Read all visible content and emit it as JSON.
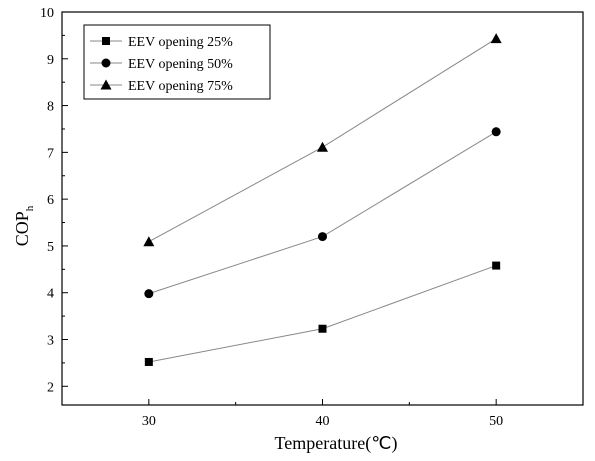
{
  "chart_data": {
    "type": "line",
    "xlabel": "Temperature(℃)",
    "ylabel": {
      "main": "COP",
      "sub": "h"
    },
    "x": [
      30,
      40,
      50
    ],
    "xlim": [
      25,
      55
    ],
    "xticks": [
      30,
      40,
      50
    ],
    "ylim": [
      1.6,
      10
    ],
    "yticks": [
      2,
      3,
      4,
      5,
      6,
      7,
      8,
      9,
      10
    ],
    "grid": false,
    "legend_position": "top-left",
    "series": [
      {
        "name": "EEV opening 25%",
        "marker": "square",
        "values": [
          2.52,
          3.23,
          4.58
        ]
      },
      {
        "name": "EEV opening 50%",
        "marker": "circle",
        "values": [
          3.98,
          5.2,
          7.44
        ]
      },
      {
        "name": "EEV opening 75%",
        "marker": "triangle",
        "values": [
          5.09,
          7.11,
          9.43
        ]
      }
    ],
    "colors": {
      "line": "#888888",
      "marker": "#000000",
      "axis": "#000000"
    }
  }
}
